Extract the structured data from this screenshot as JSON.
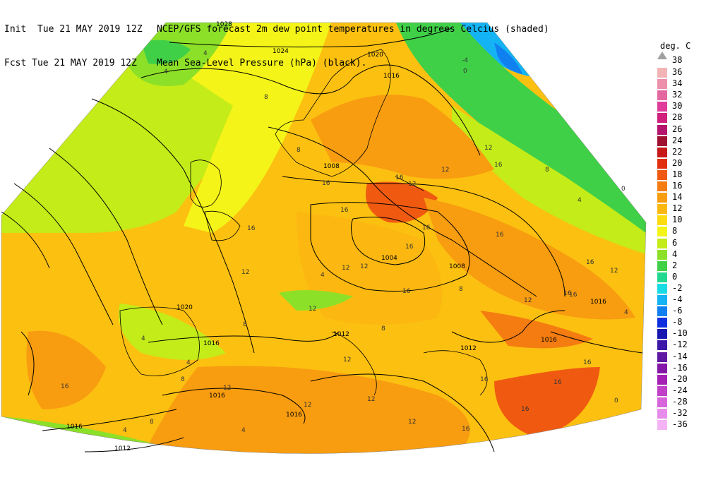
{
  "header": {
    "init_label": "Init  Tue 21 MAY 2019 12Z",
    "fcst_label": "Fcst Tue 21 MAY 2019 12Z",
    "title_line1": "NCEP/GFS forecast 2m dew point temperatures in degrees Celcius (shaded)",
    "title_line2": "Mean Sea-Level Pressure (hPa) (black)."
  },
  "legend": {
    "unit": "deg. C",
    "top_value": "38",
    "entries": [
      {
        "value": "36",
        "color": "#f2b4b4"
      },
      {
        "value": "34",
        "color": "#ec90ac"
      },
      {
        "value": "32",
        "color": "#e468a0"
      },
      {
        "value": "30",
        "color": "#e03c9c"
      },
      {
        "value": "28",
        "color": "#d0207c"
      },
      {
        "value": "26",
        "color": "#b4146c"
      },
      {
        "value": "24",
        "color": "#a01030"
      },
      {
        "value": "22",
        "color": "#c81818"
      },
      {
        "value": "20",
        "color": "#e03010"
      },
      {
        "value": "18",
        "color": "#f05a10"
      },
      {
        "value": "16",
        "color": "#f47c10"
      },
      {
        "value": "14",
        "color": "#f89c10"
      },
      {
        "value": "12",
        "color": "#fcb810"
      },
      {
        "value": "10",
        "color": "#fcdc10"
      },
      {
        "value": "8",
        "color": "#f4f418"
      },
      {
        "value": "6",
        "color": "#c4ec18"
      },
      {
        "value": "4",
        "color": "#8ce028"
      },
      {
        "value": "2",
        "color": "#40d048"
      },
      {
        "value": "0",
        "color": "#20d890"
      },
      {
        "value": "-2",
        "color": "#18dce4"
      },
      {
        "value": "-4",
        "color": "#14b4f4"
      },
      {
        "value": "-6",
        "color": "#1080f0"
      },
      {
        "value": "-8",
        "color": "#1030e0"
      },
      {
        "value": "-10",
        "color": "#1818b0"
      },
      {
        "value": "-12",
        "color": "#3c18a8"
      },
      {
        "value": "-14",
        "color": "#6018a4"
      },
      {
        "value": "-16",
        "color": "#8418a8"
      },
      {
        "value": "-20",
        "color": "#a420b4"
      },
      {
        "value": "-24",
        "color": "#c040c8"
      },
      {
        "value": "-28",
        "color": "#d864dc"
      },
      {
        "value": "-32",
        "color": "#e88cec"
      },
      {
        "value": "-36",
        "color": "#f4b4f4"
      }
    ]
  },
  "map": {
    "isobar_labels": [
      "1028",
      "1024",
      "1020",
      "1016",
      "1008",
      "1004",
      "1008",
      "1016",
      "1020",
      "1016",
      "1016",
      "1012",
      "1016",
      "1016",
      "1012",
      "1012",
      "1016"
    ],
    "dewpoint_labels": [
      "4",
      "4",
      "8",
      "8",
      "12",
      "12",
      "16",
      "16",
      "12",
      "16",
      "16",
      "16",
      "12",
      "12",
      "16",
      "8",
      "12",
      "12",
      "16",
      "12",
      "12",
      "8",
      "12",
      "4",
      "0",
      "-4",
      "0",
      "16",
      "8",
      "12",
      "16",
      "16",
      "4",
      "8",
      "16",
      "4",
      "4",
      "16",
      "12",
      "16",
      "16",
      "12",
      "4",
      "0",
      "16",
      "4",
      "12",
      "16",
      "4",
      "8",
      "8",
      "16",
      "16"
    ]
  }
}
